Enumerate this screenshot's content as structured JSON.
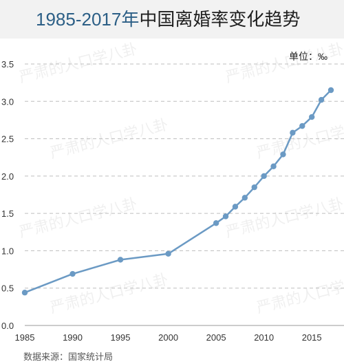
{
  "header": {
    "title_years": "1985-2017年",
    "title_rest": "中国离婚率变化趋势"
  },
  "unit_label": "单位：‰",
  "source": "数据来源：国家统计局",
  "watermark": "严肃的人口学八卦",
  "colors": {
    "line": "#6b9ac4",
    "grid": "#bdbdbd",
    "header_bg": "#f2f2f2",
    "title_accent": "#2c5f86"
  },
  "chart_data": {
    "type": "line",
    "title": "1985-2017年中国离婚率变化趋势",
    "xlabel": "",
    "ylabel": "",
    "unit": "‰",
    "xlim": [
      1985,
      2017
    ],
    "ylim": [
      0,
      3.5
    ],
    "x_ticks": [
      "1985",
      "1990",
      "1995",
      "2000",
      "2005",
      "2010",
      "2015"
    ],
    "y_ticks": [
      "0.0",
      "0.5",
      "1.0",
      "1.5",
      "2.0",
      "2.5",
      "3.0",
      "3.5"
    ],
    "grid": "horizontal dashed",
    "x": [
      1985,
      1990,
      1995,
      2000,
      2005,
      2006,
      2007,
      2008,
      2009,
      2010,
      2011,
      2012,
      2013,
      2014,
      2015,
      2016,
      2017
    ],
    "values": [
      0.44,
      0.69,
      0.88,
      0.96,
      1.37,
      1.46,
      1.59,
      1.71,
      1.85,
      2.0,
      2.13,
      2.29,
      2.58,
      2.67,
      2.79,
      3.02,
      3.15
    ]
  }
}
